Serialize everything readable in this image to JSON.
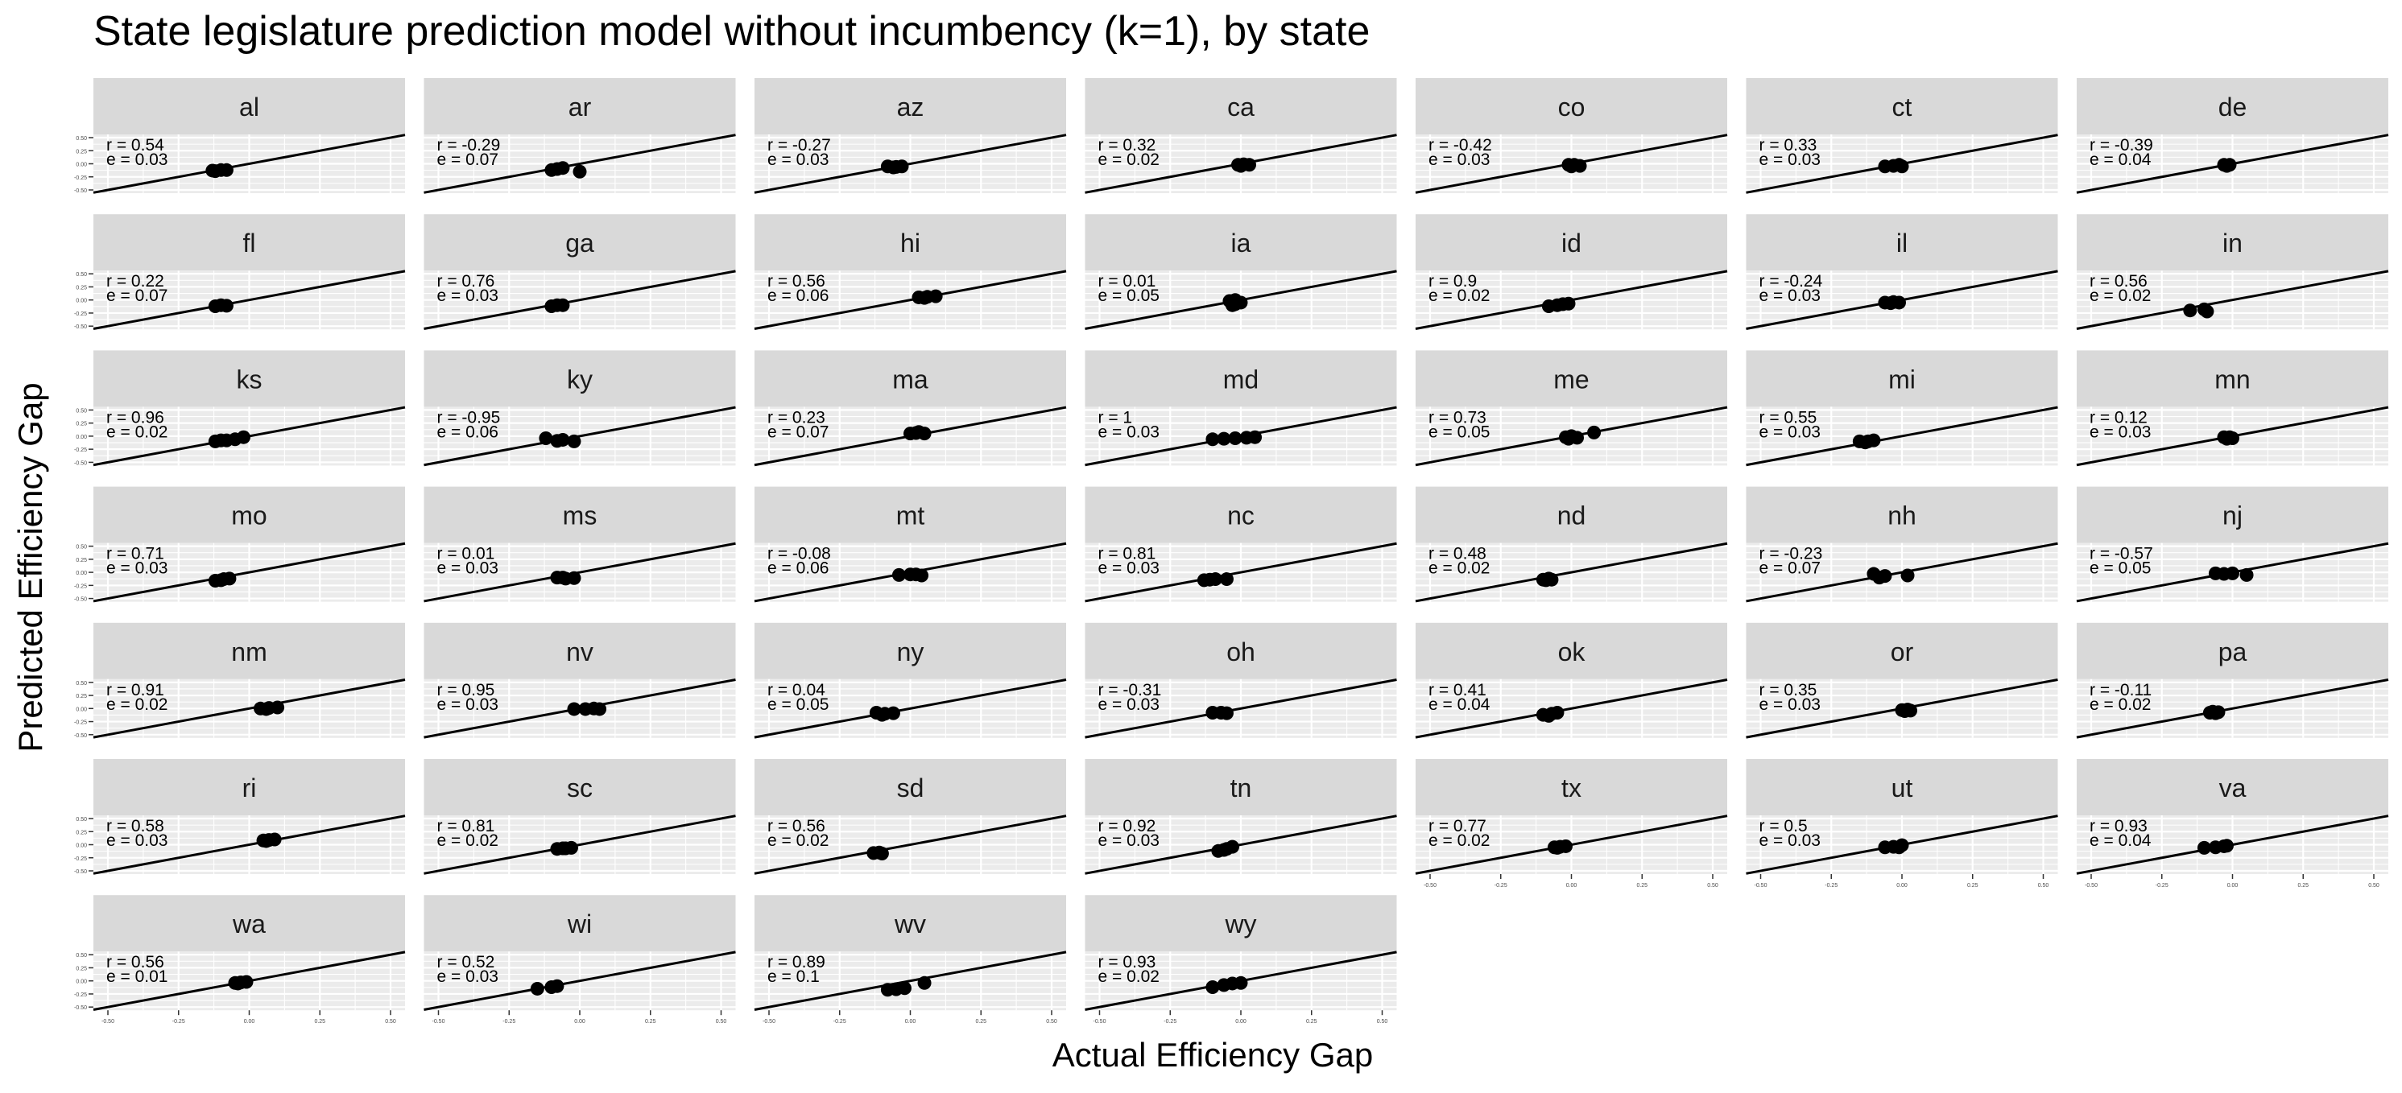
{
  "chart_data": {
    "type": "scatter",
    "title": "State legislature prediction model without incumbency (k=1), by state",
    "xlabel": "Actual Efficiency Gap",
    "ylabel": "Predicted Efficiency Gap",
    "xlim": [
      -0.5,
      0.5
    ],
    "ylim": [
      -0.5,
      0.5
    ],
    "x_ticks": [
      -0.5,
      -0.25,
      0,
      0.25,
      0.5
    ],
    "x_tick_labels": [
      "-0.50",
      "-0.25",
      "0.00",
      "0.25",
      "0.50"
    ],
    "y_ticks": [
      -0.5,
      -0.25,
      0,
      0.25,
      0.5
    ],
    "y_tick_labels": [
      "-0.50",
      "-0.25",
      "0.00",
      "0.25",
      "0.50"
    ],
    "reference_line": "y = x",
    "grid": true,
    "legend": "none",
    "facet_columns": 7,
    "facets": [
      {
        "state": "al",
        "r": "r = 0.54",
        "e": "e = 0.03",
        "points": [
          [
            -0.13,
            -0.13
          ],
          [
            -0.1,
            -0.12
          ],
          [
            -0.08,
            -0.12
          ],
          [
            -0.12,
            -0.14
          ]
        ]
      },
      {
        "state": "ar",
        "r": "r = -0.29",
        "e": "e = 0.07",
        "points": [
          [
            -0.1,
            -0.12
          ],
          [
            -0.06,
            -0.08
          ],
          [
            0.0,
            -0.15
          ],
          [
            -0.08,
            -0.1
          ]
        ]
      },
      {
        "state": "az",
        "r": "r = -0.27",
        "e": "e = 0.03",
        "points": [
          [
            -0.08,
            -0.05
          ],
          [
            -0.05,
            -0.06
          ],
          [
            -0.03,
            -0.05
          ],
          [
            -0.06,
            -0.07
          ]
        ]
      },
      {
        "state": "ca",
        "r": "r = 0.32",
        "e": "e = 0.02",
        "points": [
          [
            -0.01,
            -0.02
          ],
          [
            0.01,
            -0.01
          ],
          [
            0.03,
            -0.02
          ],
          [
            0.0,
            -0.04
          ]
        ]
      },
      {
        "state": "co",
        "r": "r = -0.42",
        "e": "e = 0.03",
        "points": [
          [
            -0.01,
            -0.02
          ],
          [
            0.01,
            -0.02
          ],
          [
            0.03,
            -0.04
          ],
          [
            0.0,
            -0.05
          ]
        ]
      },
      {
        "state": "ct",
        "r": "r = 0.33",
        "e": "e = 0.03",
        "points": [
          [
            -0.06,
            -0.05
          ],
          [
            -0.03,
            -0.04
          ],
          [
            0.0,
            -0.05
          ],
          [
            -0.01,
            -0.02
          ]
        ]
      },
      {
        "state": "de",
        "r": "r = -0.39",
        "e": "e = 0.04",
        "points": [
          [
            -0.03,
            -0.02
          ],
          [
            -0.01,
            -0.02
          ],
          [
            -0.02,
            -0.04
          ]
        ]
      },
      {
        "state": "fl",
        "r": "r = 0.22",
        "e": "e = 0.07",
        "points": [
          [
            -0.12,
            -0.12
          ],
          [
            -0.1,
            -0.1
          ],
          [
            -0.08,
            -0.11
          ]
        ]
      },
      {
        "state": "ga",
        "r": "r = 0.76",
        "e": "e = 0.03",
        "points": [
          [
            -0.1,
            -0.12
          ],
          [
            -0.08,
            -0.1
          ],
          [
            -0.06,
            -0.1
          ]
        ]
      },
      {
        "state": "hi",
        "r": "r = 0.56",
        "e": "e = 0.06",
        "points": [
          [
            0.03,
            0.05
          ],
          [
            0.06,
            0.06
          ],
          [
            0.09,
            0.07
          ],
          [
            0.05,
            0.04
          ]
        ]
      },
      {
        "state": "ia",
        "r": "r = 0.01",
        "e": "e = 0.05",
        "points": [
          [
            -0.04,
            -0.02
          ],
          [
            -0.02,
            -0.08
          ],
          [
            0.0,
            -0.05
          ],
          [
            -0.03,
            -0.1
          ],
          [
            -0.02,
            0.0
          ]
        ]
      },
      {
        "state": "id",
        "r": "r = 0.9",
        "e": "e = 0.02",
        "points": [
          [
            -0.08,
            -0.12
          ],
          [
            -0.05,
            -0.1
          ],
          [
            -0.03,
            -0.08
          ],
          [
            -0.01,
            -0.07
          ]
        ]
      },
      {
        "state": "il",
        "r": "r = -0.24",
        "e": "e = 0.03",
        "points": [
          [
            -0.06,
            -0.05
          ],
          [
            -0.03,
            -0.04
          ],
          [
            -0.01,
            -0.05
          ],
          [
            -0.04,
            -0.06
          ]
        ]
      },
      {
        "state": "in",
        "r": "r = 0.56",
        "e": "e = 0.02",
        "points": [
          [
            -0.15,
            -0.2
          ],
          [
            -0.1,
            -0.18
          ],
          [
            -0.09,
            -0.22
          ]
        ]
      },
      {
        "state": "ks",
        "r": "r = 0.96",
        "e": "e = 0.02",
        "points": [
          [
            -0.12,
            -0.1
          ],
          [
            -0.08,
            -0.08
          ],
          [
            -0.05,
            -0.06
          ],
          [
            -0.02,
            -0.02
          ],
          [
            -0.1,
            -0.08
          ]
        ]
      },
      {
        "state": "ky",
        "r": "r = -0.95",
        "e": "e = 0.06",
        "points": [
          [
            -0.12,
            -0.04
          ],
          [
            -0.06,
            -0.07
          ],
          [
            -0.02,
            -0.1
          ],
          [
            -0.08,
            -0.09
          ]
        ]
      },
      {
        "state": "ma",
        "r": "r = 0.23",
        "e": "e = 0.07",
        "points": [
          [
            0.0,
            0.05
          ],
          [
            0.02,
            0.06
          ],
          [
            0.05,
            0.05
          ],
          [
            0.03,
            0.08
          ]
        ]
      },
      {
        "state": "md",
        "r": "r = 1",
        "e": "e = 0.03",
        "points": [
          [
            -0.1,
            -0.06
          ],
          [
            -0.06,
            -0.05
          ],
          [
            -0.02,
            -0.04
          ],
          [
            0.02,
            -0.03
          ],
          [
            0.05,
            -0.02
          ]
        ]
      },
      {
        "state": "me",
        "r": "r = 0.73",
        "e": "e = 0.05",
        "points": [
          [
            -0.02,
            -0.02
          ],
          [
            0.0,
            0.0
          ],
          [
            0.02,
            -0.03
          ],
          [
            0.08,
            0.07
          ],
          [
            -0.01,
            -0.05
          ]
        ]
      },
      {
        "state": "mi",
        "r": "r = 0.55",
        "e": "e = 0.03",
        "points": [
          [
            -0.15,
            -0.1
          ],
          [
            -0.12,
            -0.1
          ],
          [
            -0.1,
            -0.08
          ],
          [
            -0.13,
            -0.12
          ]
        ]
      },
      {
        "state": "mn",
        "r": "r = 0.12",
        "e": "e = 0.03",
        "points": [
          [
            -0.03,
            -0.02
          ],
          [
            -0.01,
            -0.02
          ],
          [
            0.0,
            -0.04
          ],
          [
            -0.02,
            -0.05
          ]
        ]
      },
      {
        "state": "mo",
        "r": "r = 0.71",
        "e": "e = 0.03",
        "points": [
          [
            -0.12,
            -0.16
          ],
          [
            -0.09,
            -0.13
          ],
          [
            -0.07,
            -0.12
          ],
          [
            -0.1,
            -0.15
          ]
        ]
      },
      {
        "state": "ms",
        "r": "r = 0.01",
        "e": "e = 0.03",
        "points": [
          [
            -0.08,
            -0.1
          ],
          [
            -0.05,
            -0.12
          ],
          [
            -0.02,
            -0.11
          ],
          [
            -0.06,
            -0.1
          ]
        ]
      },
      {
        "state": "mt",
        "r": "r = -0.08",
        "e": "e = 0.06",
        "points": [
          [
            -0.04,
            -0.05
          ],
          [
            0.0,
            -0.04
          ],
          [
            0.04,
            -0.06
          ],
          [
            0.02,
            -0.04
          ]
        ]
      },
      {
        "state": "nc",
        "r": "r = 0.81",
        "e": "e = 0.03",
        "points": [
          [
            -0.13,
            -0.15
          ],
          [
            -0.09,
            -0.13
          ],
          [
            -0.05,
            -0.13
          ],
          [
            -0.11,
            -0.14
          ]
        ]
      },
      {
        "state": "nd",
        "r": "r = 0.48",
        "e": "e = 0.02",
        "points": [
          [
            -0.1,
            -0.14
          ],
          [
            -0.08,
            -0.12
          ],
          [
            -0.07,
            -0.14
          ],
          [
            -0.09,
            -0.15
          ]
        ]
      },
      {
        "state": "nh",
        "r": "r = -0.23",
        "e": "e = 0.07",
        "points": [
          [
            -0.1,
            -0.03
          ],
          [
            -0.08,
            -0.1
          ],
          [
            -0.06,
            -0.07
          ],
          [
            0.02,
            -0.06
          ]
        ]
      },
      {
        "state": "nj",
        "r": "r = -0.57",
        "e": "e = 0.05",
        "points": [
          [
            -0.06,
            -0.02
          ],
          [
            -0.03,
            -0.03
          ],
          [
            0.0,
            -0.02
          ],
          [
            0.05,
            -0.05
          ]
        ]
      },
      {
        "state": "nm",
        "r": "r = 0.91",
        "e": "e = 0.02",
        "points": [
          [
            0.04,
            0.0
          ],
          [
            0.07,
            0.01
          ],
          [
            0.1,
            0.02
          ],
          [
            0.06,
            -0.01
          ]
        ]
      },
      {
        "state": "nv",
        "r": "r = 0.95",
        "e": "e = 0.03",
        "points": [
          [
            -0.02,
            -0.01
          ],
          [
            0.02,
            -0.01
          ],
          [
            0.05,
            0.0
          ],
          [
            0.07,
            -0.01
          ]
        ]
      },
      {
        "state": "ny",
        "r": "r = 0.04",
        "e": "e = 0.05",
        "points": [
          [
            -0.12,
            -0.08
          ],
          [
            -0.09,
            -0.1
          ],
          [
            -0.06,
            -0.09
          ],
          [
            -0.1,
            -0.12
          ]
        ]
      },
      {
        "state": "oh",
        "r": "r = -0.31",
        "e": "e = 0.03",
        "points": [
          [
            -0.1,
            -0.08
          ],
          [
            -0.07,
            -0.08
          ],
          [
            -0.05,
            -0.09
          ]
        ]
      },
      {
        "state": "ok",
        "r": "r = 0.41",
        "e": "e = 0.04",
        "points": [
          [
            -0.1,
            -0.12
          ],
          [
            -0.07,
            -0.1
          ],
          [
            -0.05,
            -0.08
          ],
          [
            -0.08,
            -0.14
          ]
        ]
      },
      {
        "state": "or",
        "r": "r = 0.35",
        "e": "e = 0.03",
        "points": [
          [
            0.0,
            -0.03
          ],
          [
            0.02,
            -0.02
          ],
          [
            0.03,
            -0.04
          ],
          [
            0.01,
            -0.05
          ]
        ]
      },
      {
        "state": "pa",
        "r": "r = -0.11",
        "e": "e = 0.02",
        "points": [
          [
            -0.08,
            -0.08
          ],
          [
            -0.05,
            -0.07
          ],
          [
            -0.06,
            -0.09
          ],
          [
            -0.07,
            -0.06
          ]
        ]
      },
      {
        "state": "ri",
        "r": "r = 0.58",
        "e": "e = 0.03",
        "points": [
          [
            0.05,
            0.08
          ],
          [
            0.07,
            0.09
          ],
          [
            0.09,
            0.1
          ],
          [
            0.06,
            0.07
          ]
        ]
      },
      {
        "state": "sc",
        "r": "r = 0.81",
        "e": "e = 0.02",
        "points": [
          [
            -0.08,
            -0.08
          ],
          [
            -0.05,
            -0.07
          ],
          [
            -0.03,
            -0.06
          ],
          [
            -0.06,
            -0.07
          ]
        ]
      },
      {
        "state": "sd",
        "r": "r = 0.56",
        "e": "e = 0.02",
        "points": [
          [
            -0.13,
            -0.16
          ],
          [
            -0.11,
            -0.15
          ],
          [
            -0.1,
            -0.17
          ]
        ]
      },
      {
        "state": "tn",
        "r": "r = 0.92",
        "e": "e = 0.03",
        "points": [
          [
            -0.08,
            -0.12
          ],
          [
            -0.05,
            -0.08
          ],
          [
            -0.03,
            -0.04
          ],
          [
            -0.06,
            -0.1
          ]
        ]
      },
      {
        "state": "tx",
        "r": "r = 0.77",
        "e": "e = 0.02",
        "points": [
          [
            -0.06,
            -0.05
          ],
          [
            -0.04,
            -0.04
          ],
          [
            -0.02,
            -0.03
          ],
          [
            -0.05,
            -0.06
          ]
        ]
      },
      {
        "state": "ut",
        "r": "r = 0.5",
        "e": "e = 0.03",
        "points": [
          [
            -0.06,
            -0.05
          ],
          [
            -0.03,
            -0.04
          ],
          [
            -0.01,
            -0.05
          ],
          [
            0.0,
            -0.01
          ]
        ]
      },
      {
        "state": "va",
        "r": "r = 0.93",
        "e": "e = 0.04",
        "points": [
          [
            -0.1,
            -0.06
          ],
          [
            -0.06,
            -0.05
          ],
          [
            -0.03,
            -0.03
          ],
          [
            -0.02,
            -0.02
          ]
        ]
      },
      {
        "state": "wa",
        "r": "r = 0.56",
        "e": "e = 0.01",
        "points": [
          [
            -0.05,
            -0.04
          ],
          [
            -0.03,
            -0.03
          ],
          [
            -0.01,
            -0.02
          ],
          [
            -0.04,
            -0.05
          ]
        ]
      },
      {
        "state": "wi",
        "r": "r = 0.52",
        "e": "e = 0.03",
        "points": [
          [
            -0.15,
            -0.15
          ],
          [
            -0.1,
            -0.12
          ],
          [
            -0.08,
            -0.1
          ]
        ]
      },
      {
        "state": "wv",
        "r": "r = 0.89",
        "e": "e = 0.1",
        "points": [
          [
            -0.08,
            -0.17
          ],
          [
            -0.05,
            -0.16
          ],
          [
            -0.02,
            -0.14
          ],
          [
            0.05,
            -0.04
          ]
        ]
      },
      {
        "state": "wy",
        "r": "r = 0.93",
        "e": "e = 0.02",
        "points": [
          [
            -0.1,
            -0.12
          ],
          [
            -0.06,
            -0.08
          ],
          [
            -0.03,
            -0.05
          ],
          [
            0.0,
            -0.04
          ]
        ]
      }
    ]
  }
}
